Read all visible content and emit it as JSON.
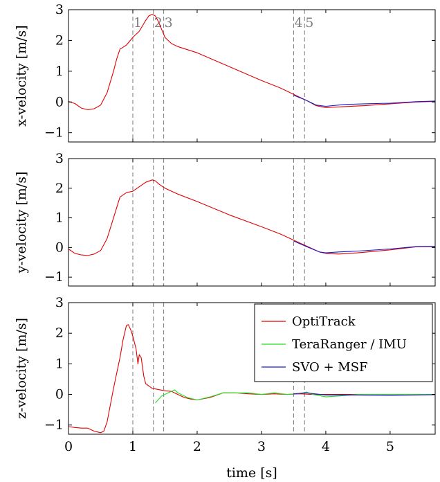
{
  "chart_data": [
    {
      "type": "line",
      "ylabel": "x-velocity [m/s]",
      "xlim": [
        0,
        5.7
      ],
      "ylim": [
        -1.3,
        3
      ],
      "yticks": [
        -1,
        0,
        1,
        2,
        3
      ],
      "xtick_labels_shown": false,
      "grid": false,
      "events": [
        {
          "label": "1",
          "x": 1.0
        },
        {
          "label": "2",
          "x": 1.32
        },
        {
          "label": "3",
          "x": 1.48
        },
        {
          "label": "4",
          "x": 3.5
        },
        {
          "label": "5",
          "x": 3.67
        }
      ],
      "series": [
        {
          "name": "OptiTrack",
          "color": "#e00000",
          "x": [
            0,
            0.1,
            0.2,
            0.3,
            0.4,
            0.5,
            0.6,
            0.7,
            0.75,
            0.8,
            0.85,
            0.9,
            1.0,
            1.1,
            1.2,
            1.25,
            1.3,
            1.35,
            1.4,
            1.5,
            1.6,
            1.7,
            2.0,
            2.5,
            3.0,
            3.3,
            3.5,
            3.7,
            3.85,
            4.0,
            4.3,
            4.6,
            5.0,
            5.4,
            5.7
          ],
          "y": [
            0.02,
            -0.05,
            -0.2,
            -0.25,
            -0.22,
            -0.1,
            0.3,
            1.0,
            1.4,
            1.72,
            1.78,
            1.85,
            2.1,
            2.3,
            2.65,
            2.8,
            2.85,
            2.8,
            2.6,
            2.1,
            1.9,
            1.8,
            1.6,
            1.15,
            0.7,
            0.45,
            0.25,
            0.05,
            -0.12,
            -0.18,
            -0.15,
            -0.12,
            -0.06,
            0,
            0.02
          ]
        },
        {
          "name": "SVO + MSF",
          "color": "#1a1acc",
          "x": [
            3.5,
            3.7,
            3.85,
            4.0,
            4.3,
            4.6,
            5.0,
            5.4,
            5.7
          ],
          "y": [
            0.22,
            0.05,
            -0.1,
            -0.14,
            -0.08,
            -0.06,
            -0.04,
            0.01,
            0.03
          ]
        }
      ]
    },
    {
      "type": "line",
      "ylabel": "y-velocity [m/s]",
      "xlim": [
        0,
        5.7
      ],
      "ylim": [
        -1.3,
        3
      ],
      "yticks": [
        -1,
        0,
        1,
        2,
        3
      ],
      "xtick_labels_shown": false,
      "grid": false,
      "events": [
        {
          "label": "",
          "x": 1.0
        },
        {
          "label": "",
          "x": 1.32
        },
        {
          "label": "",
          "x": 1.48
        },
        {
          "label": "",
          "x": 3.5
        },
        {
          "label": "",
          "x": 3.67
        }
      ],
      "series": [
        {
          "name": "OptiTrack",
          "color": "#e00000",
          "x": [
            0,
            0.1,
            0.2,
            0.3,
            0.4,
            0.5,
            0.6,
            0.7,
            0.8,
            0.9,
            1.0,
            1.1,
            1.2,
            1.3,
            1.35,
            1.4,
            1.5,
            1.7,
            2.0,
            2.5,
            3.0,
            3.3,
            3.5,
            3.7,
            3.9,
            4.0,
            4.2,
            4.5,
            5.0,
            5.4,
            5.7
          ],
          "y": [
            -0.05,
            -0.2,
            -0.25,
            -0.27,
            -0.22,
            -0.1,
            0.3,
            1.0,
            1.7,
            1.85,
            1.9,
            2.05,
            2.2,
            2.28,
            2.25,
            2.15,
            2.0,
            1.8,
            1.55,
            1.1,
            0.7,
            0.45,
            0.25,
            0.05,
            -0.15,
            -0.2,
            -0.22,
            -0.18,
            -0.08,
            0.02,
            0.03
          ]
        },
        {
          "name": "SVO + MSF",
          "color": "#1a1acc",
          "x": [
            3.5,
            3.7,
            3.9,
            4.0,
            4.2,
            4.5,
            5.0,
            5.4,
            5.7
          ],
          "y": [
            0.22,
            0.03,
            -0.15,
            -0.18,
            -0.15,
            -0.12,
            -0.05,
            0.03,
            0.04
          ]
        }
      ]
    },
    {
      "type": "line",
      "ylabel": "z-velocity [m/s]",
      "xlabel": "time [s]",
      "xlim": [
        0,
        5.7
      ],
      "ylim": [
        -1.3,
        3
      ],
      "yticks": [
        -1,
        0,
        1,
        2,
        3
      ],
      "xticks": [
        0,
        1,
        2,
        3,
        4,
        5
      ],
      "grid": false,
      "legend_position": "top-right",
      "events": [
        {
          "label": "",
          "x": 1.0
        },
        {
          "label": "",
          "x": 1.32
        },
        {
          "label": "",
          "x": 1.48
        },
        {
          "label": "",
          "x": 3.5
        },
        {
          "label": "",
          "x": 3.67
        }
      ],
      "series": [
        {
          "name": "OptiTrack",
          "color": "#e00000",
          "x": [
            0,
            0.1,
            0.2,
            0.3,
            0.4,
            0.5,
            0.55,
            0.6,
            0.7,
            0.8,
            0.85,
            0.9,
            0.93,
            0.97,
            1.0,
            1.05,
            1.08,
            1.1,
            1.13,
            1.17,
            1.2,
            1.3,
            1.5,
            1.6,
            1.7,
            1.8,
            1.9,
            2.0,
            2.2,
            2.4,
            2.6,
            2.8,
            3.0,
            3.2,
            3.4,
            3.6,
            3.8,
            4.0,
            4.5,
            5.0,
            5.7
          ],
          "y": [
            -1.05,
            -1.08,
            -1.1,
            -1.1,
            -1.2,
            -1.25,
            -1.2,
            -0.9,
            0.2,
            1.2,
            1.8,
            2.25,
            2.28,
            2.1,
            1.9,
            1.5,
            1.0,
            1.3,
            1.2,
            0.6,
            0.35,
            0.2,
            0.12,
            0.1,
            0.0,
            -0.1,
            -0.15,
            -0.18,
            -0.1,
            0.05,
            0.05,
            0.02,
            0.0,
            0.02,
            0.0,
            0.02,
            0.0,
            0.0,
            0.0,
            0.0,
            0.0
          ]
        },
        {
          "name": "TeraRanger / IMU",
          "color": "#22e022",
          "x": [
            1.35,
            1.45,
            1.55,
            1.6,
            1.65,
            1.7,
            1.75,
            1.85,
            2.0,
            2.2,
            2.4,
            2.6,
            2.8,
            3.0,
            3.2,
            3.4,
            3.6,
            3.7,
            3.8,
            4.0,
            4.2,
            4.5,
            5.0,
            5.7
          ],
          "y": [
            -0.28,
            -0.05,
            0.05,
            0.1,
            0.15,
            0.05,
            0.0,
            -0.1,
            -0.18,
            -0.08,
            0.05,
            0.05,
            0.05,
            0.0,
            0.05,
            0.0,
            0.03,
            0.08,
            0.0,
            -0.08,
            -0.05,
            0.0,
            0.0,
            0.0
          ]
        },
        {
          "name": "SVO + MSF",
          "color": "#1a1acc",
          "x": [
            3.5,
            3.7,
            4.0,
            4.5,
            5.0,
            5.7
          ],
          "y": [
            0.02,
            0.05,
            -0.02,
            -0.02,
            -0.03,
            -0.01
          ]
        }
      ]
    }
  ]
}
